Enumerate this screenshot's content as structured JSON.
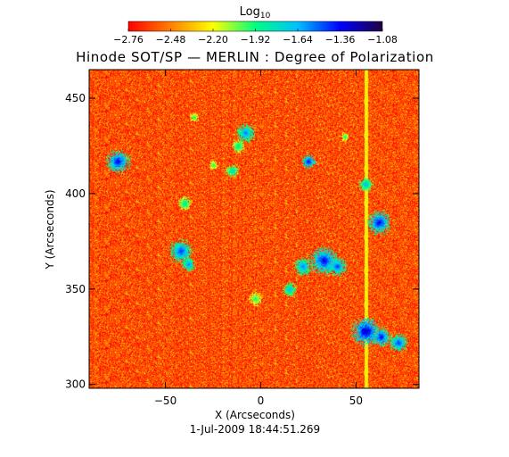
{
  "chart_data": {
    "type": "heatmap",
    "title": "Hinode SOT/SP — MERLIN : Degree of Polarization",
    "xlabel": "X (Arcseconds)",
    "ylabel": "Y (Arcseconds)",
    "timestamp": "1-Jul-2009 18:44:51.269",
    "colorbar": {
      "label_base": "Log",
      "label_sub": "10",
      "ticks": [
        -2.76,
        -2.48,
        -2.2,
        -1.92,
        -1.64,
        -1.36,
        -1.08
      ],
      "tick_labels": [
        "−2.76",
        "−2.48",
        "−2.20",
        "−1.92",
        "−1.64",
        "−1.36",
        "−1.08"
      ],
      "range": [
        -2.76,
        -1.08
      ],
      "colormap": [
        "#ff0000",
        "#ff8000",
        "#ffff00",
        "#00ff80",
        "#00c0ff",
        "#0000ff",
        "#200040"
      ]
    },
    "xlim": [
      -90,
      83
    ],
    "ylim": [
      298,
      465
    ],
    "xticks": [
      -50,
      0,
      50
    ],
    "xtick_labels": [
      "−50",
      "0",
      "50"
    ],
    "yticks": [
      300,
      350,
      400,
      450
    ],
    "ytick_labels": [
      "300",
      "350",
      "400",
      "450"
    ],
    "grid": false,
    "background_level": -2.6,
    "features": [
      {
        "x": -75,
        "y": 417,
        "r": 5,
        "v": -1.3
      },
      {
        "x": -42,
        "y": 370,
        "r": 5,
        "v": -1.4
      },
      {
        "x": -38,
        "y": 363,
        "r": 3,
        "v": -1.5
      },
      {
        "x": -40,
        "y": 395,
        "r": 3,
        "v": -1.8
      },
      {
        "x": -15,
        "y": 412,
        "r": 3,
        "v": -1.7
      },
      {
        "x": -12,
        "y": 425,
        "r": 3,
        "v": -1.8
      },
      {
        "x": -8,
        "y": 432,
        "r": 4,
        "v": -1.5
      },
      {
        "x": -35,
        "y": 440,
        "r": 2,
        "v": -1.9
      },
      {
        "x": 15,
        "y": 350,
        "r": 3,
        "v": -1.6
      },
      {
        "x": 22,
        "y": 362,
        "r": 4,
        "v": -1.5
      },
      {
        "x": 25,
        "y": 417,
        "r": 3,
        "v": -1.3
      },
      {
        "x": 33,
        "y": 365,
        "r": 6,
        "v": -1.3
      },
      {
        "x": 40,
        "y": 362,
        "r": 4,
        "v": -1.4
      },
      {
        "x": 55,
        "y": 405,
        "r": 3,
        "v": -1.6
      },
      {
        "x": 62,
        "y": 385,
        "r": 5,
        "v": -1.3
      },
      {
        "x": 55,
        "y": 328,
        "r": 6,
        "v": -1.2
      },
      {
        "x": 63,
        "y": 325,
        "r": 4,
        "v": -1.3
      },
      {
        "x": 72,
        "y": 322,
        "r": 4,
        "v": -1.4
      },
      {
        "x": -3,
        "y": 345,
        "r": 3,
        "v": -1.9
      },
      {
        "x": -25,
        "y": 415,
        "r": 2,
        "v": -1.9
      },
      {
        "x": 44,
        "y": 430,
        "r": 2,
        "v": -1.9
      }
    ]
  }
}
